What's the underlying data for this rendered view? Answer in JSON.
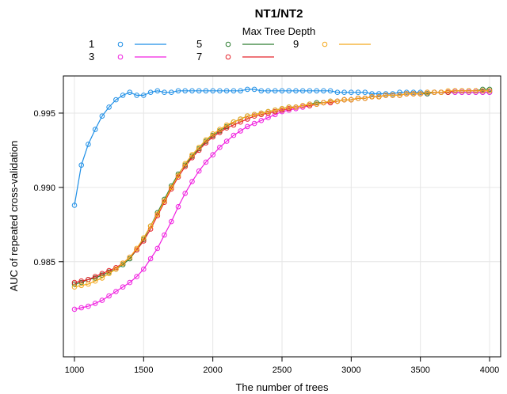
{
  "chart_data": {
    "type": "line",
    "title": "NT1/NT2",
    "xlabel": "The number of trees",
    "ylabel": "AUC of repeated cross-validation",
    "legend_title": "Max Tree Depth",
    "legend_placement": "top",
    "xlim": [
      920,
      4080
    ],
    "ylim": [
      0.9786,
      0.9975
    ],
    "x_ticks": [
      1000,
      1500,
      2000,
      2500,
      3000,
      3500,
      4000
    ],
    "y_ticks": [
      0.985,
      0.99,
      0.995
    ],
    "x_tick_labels": [
      "1000",
      "1500",
      "2000",
      "2500",
      "3000",
      "3500",
      "4000"
    ],
    "y_tick_labels": [
      "0.985",
      "0.990",
      "0.995"
    ],
    "grid": true,
    "x": [
      1000,
      1050,
      1100,
      1150,
      1200,
      1250,
      1300,
      1350,
      1400,
      1450,
      1500,
      1550,
      1600,
      1650,
      1700,
      1750,
      1800,
      1850,
      1900,
      1950,
      2000,
      2050,
      2100,
      2150,
      2200,
      2250,
      2300,
      2350,
      2400,
      2450,
      2500,
      2550,
      2600,
      2650,
      2700,
      2750,
      2800,
      2850,
      2900,
      2950,
      3000,
      3050,
      3100,
      3150,
      3200,
      3250,
      3300,
      3350,
      3400,
      3450,
      3500,
      3550,
      3600,
      3650,
      3700,
      3750,
      3800,
      3850,
      3900,
      3950,
      4000
    ],
    "series": [
      {
        "name": "1",
        "color": "#1f8fe6",
        "values": [
          0.9888,
          0.9915,
          0.9929,
          0.9939,
          0.9948,
          0.9954,
          0.9959,
          0.9962,
          0.9964,
          0.9962,
          0.9962,
          0.9964,
          0.9965,
          0.9964,
          0.9964,
          0.9965,
          0.9965,
          0.9965,
          0.9965,
          0.9965,
          0.9965,
          0.9965,
          0.9965,
          0.9965,
          0.9965,
          0.9966,
          0.9966,
          0.9965,
          0.9965,
          0.9965,
          0.9965,
          0.9965,
          0.9965,
          0.9965,
          0.9965,
          0.9965,
          0.9965,
          0.9965,
          0.9964,
          0.9964,
          0.9964,
          0.9964,
          0.9964,
          0.9963,
          0.9963,
          0.9963,
          0.9963,
          0.9964,
          0.9964,
          0.9964,
          0.9964,
          0.9964,
          0.9964,
          0.9964,
          0.9964,
          0.9964,
          0.9964,
          0.9964,
          0.9964,
          0.9964,
          0.9964
        ]
      },
      {
        "name": "3",
        "color": "#f020e0",
        "values": [
          0.9818,
          0.9819,
          0.982,
          0.9822,
          0.9824,
          0.9827,
          0.983,
          0.9833,
          0.9836,
          0.984,
          0.9845,
          0.9852,
          0.9859,
          0.9868,
          0.9877,
          0.9887,
          0.9896,
          0.9904,
          0.9911,
          0.9917,
          0.9922,
          0.9927,
          0.9931,
          0.9935,
          0.9938,
          0.9941,
          0.9943,
          0.9945,
          0.9947,
          0.9949,
          0.9951,
          0.9952,
          0.9953,
          0.9954,
          0.9955,
          0.9956,
          0.9957,
          0.9957,
          0.9958,
          0.9959,
          0.9959,
          0.996,
          0.996,
          0.9961,
          0.9961,
          0.9962,
          0.9962,
          0.9962,
          0.9963,
          0.9963,
          0.9963,
          0.9963,
          0.9964,
          0.9964,
          0.9964,
          0.9964,
          0.9964,
          0.9964,
          0.9964,
          0.9964,
          0.9964
        ]
      },
      {
        "name": "5",
        "color": "#2e7d32",
        "values": [
          0.9835,
          0.9836,
          0.9838,
          0.9839,
          0.9841,
          0.9843,
          0.9845,
          0.9848,
          0.9852,
          0.9858,
          0.9865,
          0.9874,
          0.9883,
          0.9892,
          0.9901,
          0.9909,
          0.9915,
          0.9921,
          0.9926,
          0.9931,
          0.9935,
          0.9938,
          0.9941,
          0.9944,
          0.9946,
          0.9948,
          0.9949,
          0.995,
          0.9951,
          0.9952,
          0.9953,
          0.9954,
          0.9954,
          0.9955,
          0.9956,
          0.9957,
          0.9957,
          0.9958,
          0.9958,
          0.9959,
          0.9959,
          0.996,
          0.996,
          0.9961,
          0.9961,
          0.9962,
          0.9962,
          0.9962,
          0.9963,
          0.9963,
          0.9963,
          0.9963,
          0.9964,
          0.9964,
          0.9964,
          0.9965,
          0.9965,
          0.9965,
          0.9965,
          0.9966,
          0.9966
        ]
      },
      {
        "name": "7",
        "color": "#e5232a",
        "values": [
          0.9836,
          0.9837,
          0.9838,
          0.984,
          0.9842,
          0.9844,
          0.9846,
          0.9849,
          0.9853,
          0.9858,
          0.9864,
          0.9872,
          0.9881,
          0.989,
          0.9899,
          0.9907,
          0.9914,
          0.992,
          0.9925,
          0.993,
          0.9934,
          0.9937,
          0.994,
          0.9942,
          0.9944,
          0.9946,
          0.9948,
          0.9949,
          0.995,
          0.9951,
          0.9952,
          0.9953,
          0.9954,
          0.9955,
          0.9955,
          0.9956,
          0.9957,
          0.9957,
          0.9958,
          0.9959,
          0.9959,
          0.996,
          0.996,
          0.9961,
          0.9961,
          0.9962,
          0.9962,
          0.9962,
          0.9963,
          0.9963,
          0.9963,
          0.9964,
          0.9964,
          0.9964,
          0.9964,
          0.9965,
          0.9965,
          0.9965,
          0.9965,
          0.9965,
          0.9965
        ]
      },
      {
        "name": "9",
        "color": "#f4a91f",
        "values": [
          0.9833,
          0.9834,
          0.9835,
          0.9837,
          0.9839,
          0.9842,
          0.9845,
          0.9849,
          0.9853,
          0.9859,
          0.9866,
          0.9874,
          0.9882,
          0.9891,
          0.99,
          0.9908,
          0.9916,
          0.9922,
          0.9927,
          0.9932,
          0.9936,
          0.9939,
          0.9942,
          0.9944,
          0.9946,
          0.9948,
          0.9949,
          0.995,
          0.9951,
          0.9952,
          0.9953,
          0.9954,
          0.9954,
          0.9955,
          0.9956,
          0.9956,
          0.9957,
          0.9958,
          0.9958,
          0.9959,
          0.9959,
          0.996,
          0.996,
          0.9961,
          0.9961,
          0.9962,
          0.9962,
          0.9962,
          0.9963,
          0.9963,
          0.9963,
          0.9964,
          0.9964,
          0.9964,
          0.9965,
          0.9965,
          0.9965,
          0.9965,
          0.9965,
          0.9965,
          0.9965
        ]
      }
    ]
  }
}
